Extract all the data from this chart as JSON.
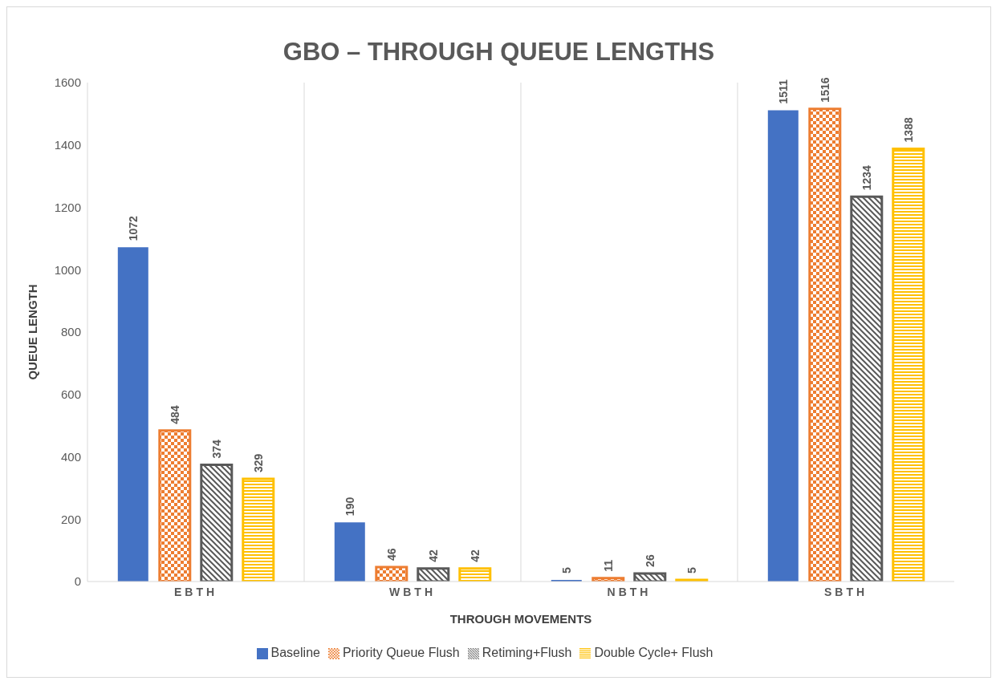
{
  "chart_data": {
    "type": "bar",
    "title": "GBO – THROUGH QUEUE LENGTHS",
    "xlabel": "THROUGH  MOVEMENTS",
    "ylabel": "QUEUE LENGTH",
    "categories": [
      "EBTH",
      "WBTH",
      "NBTH",
      "SBTH"
    ],
    "series": [
      {
        "name": "Baseline",
        "color": "#4472c4",
        "values": [
          1072,
          190,
          5,
          1511
        ]
      },
      {
        "name": "Priority Queue Flush",
        "color": "#ed7d31",
        "values": [
          484,
          46,
          11,
          1516
        ]
      },
      {
        "name": "Retiming+Flush",
        "color": "#595959",
        "values": [
          374,
          42,
          26,
          1234
        ]
      },
      {
        "name": "Double Cycle+ Flush",
        "color": "#ffc000",
        "values": [
          329,
          42,
          5,
          1388
        ]
      }
    ],
    "ylim": [
      0,
      1600
    ],
    "yticks": [
      0,
      200,
      400,
      600,
      800,
      1000,
      1200,
      1400,
      1600
    ],
    "grid": "x",
    "legend": "bottom",
    "data_labels": true
  }
}
